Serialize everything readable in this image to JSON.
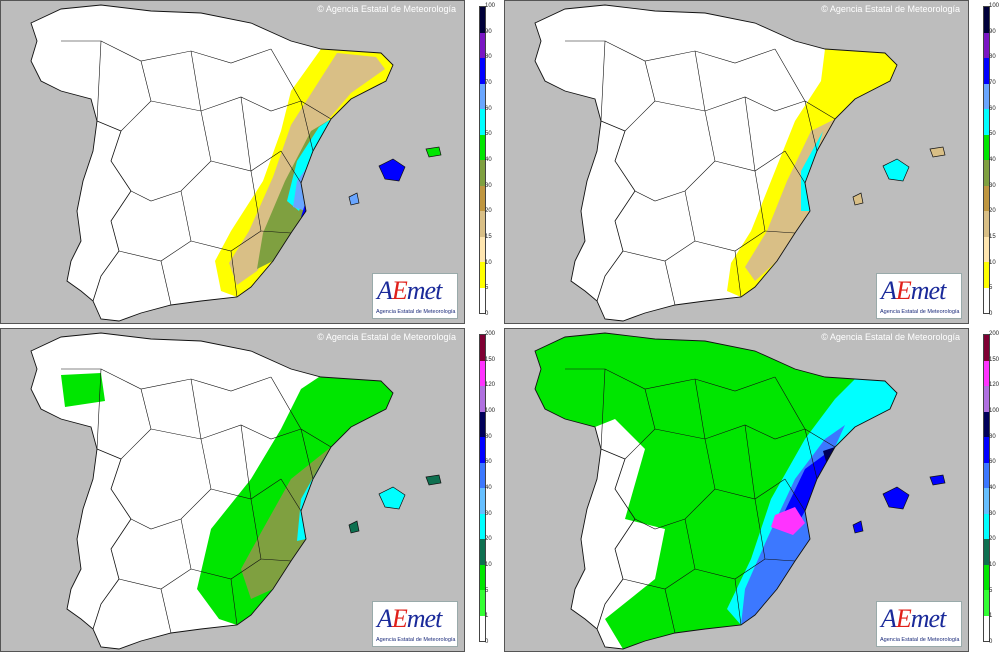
{
  "copyright": "© Agencia Estatal de Meteorología",
  "logo": {
    "word_a": "A",
    "word_e": "E",
    "word_rest": "met",
    "subtitle": "Agencia Estatal de Meteorología"
  },
  "palette_top": [
    "#ffff00",
    "#ffe6b0",
    "#d9bf86",
    "#bf9640",
    "#7fa040",
    "#00e600",
    "#00ffff",
    "#6aa6ff",
    "#0000ff",
    "#7a16c4",
    "#00003a"
  ],
  "palette_bottom": [
    "#33ff33",
    "#00e600",
    "#0e7050",
    "#00ffff",
    "#66bfff",
    "#3c78ff",
    "#0000ff",
    "#00005a",
    "#b070e0",
    "#ff33ff",
    "#7f0033"
  ],
  "panels": [
    {
      "name": "top-left",
      "legend_ticks": [
        "100",
        "90",
        "80",
        "70",
        "60",
        "50",
        "40",
        "30",
        "20",
        "15",
        "10",
        "5",
        "0"
      ],
      "legend_colors": [
        "#00003a",
        "#7a16c4",
        "#0000ff",
        "#6aa6ff",
        "#00ffff",
        "#00e600",
        "#7fa040",
        "#bf9640",
        "#d9bf86",
        "#ffe6b0",
        "#ffff00",
        "#ffffff"
      ]
    },
    {
      "name": "top-right",
      "legend_ticks": [
        "100",
        "90",
        "80",
        "70",
        "60",
        "50",
        "40",
        "30",
        "20",
        "15",
        "10",
        "5",
        "0"
      ],
      "legend_colors": [
        "#00003a",
        "#7a16c4",
        "#0000ff",
        "#6aa6ff",
        "#00ffff",
        "#00e600",
        "#7fa040",
        "#bf9640",
        "#d9bf86",
        "#ffe6b0",
        "#ffff00",
        "#ffffff"
      ]
    },
    {
      "name": "bottom-left",
      "legend_ticks": [
        "200",
        "150",
        "120",
        "100",
        "80",
        "60",
        "40",
        "30",
        "20",
        "10",
        "5",
        "1",
        "0"
      ],
      "legend_colors": [
        "#7f0033",
        "#ff33ff",
        "#b070e0",
        "#00005a",
        "#0000ff",
        "#3c78ff",
        "#66bfff",
        "#00ffff",
        "#0e7050",
        "#00e600",
        "#33ff33",
        "#ffffff"
      ]
    },
    {
      "name": "bottom-right",
      "legend_ticks": [
        "200",
        "150",
        "120",
        "100",
        "80",
        "60",
        "40",
        "30",
        "20",
        "10",
        "5",
        "1",
        "0"
      ],
      "legend_colors": [
        "#7f0033",
        "#ff33ff",
        "#b070e0",
        "#00005a",
        "#0000ff",
        "#3c78ff",
        "#66bfff",
        "#00ffff",
        "#0e7050",
        "#00e600",
        "#33ff33",
        "#ffffff"
      ]
    }
  ]
}
